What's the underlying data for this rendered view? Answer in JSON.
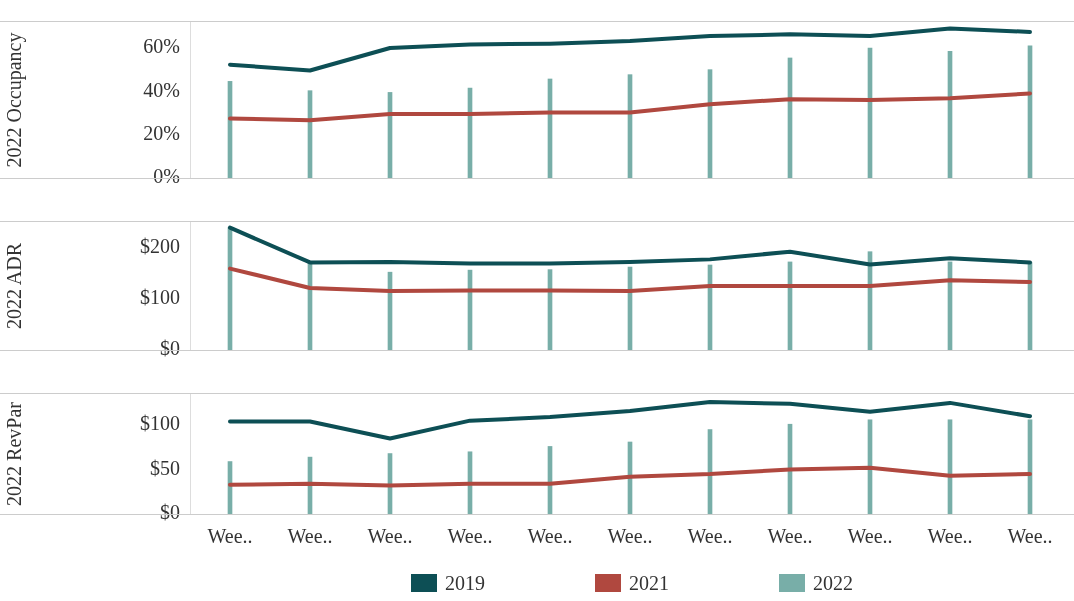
{
  "chart_data": [
    {
      "type": "line",
      "ylabel": "2022 Occupancy",
      "categories": [
        null,
        null,
        null,
        null,
        null,
        null,
        null,
        null,
        null,
        null,
        null
      ],
      "series": [
        {
          "color": "#0d4f55",
          "values": [
            52.3,
            49.6,
            60,
            61.6,
            62,
            63.2,
            65.5,
            66.3,
            65.5,
            69,
            67.4
          ]
        },
        {
          "color": "#b0483f",
          "values": [
            27.5,
            26.7,
            29.5,
            29.5,
            30.2,
            30.2,
            34,
            36.4,
            36,
            36.8,
            39
          ]
        },
        {
          "type": "bar",
          "color": "#78aea8",
          "values": [
            44.6,
            40.3,
            39.5,
            41.5,
            45.7,
            47.7,
            50,
            55.4,
            60,
            58.5,
            61
          ]
        }
      ],
      "ylim": [
        0,
        72
      ],
      "yticks": [
        {
          "value": 0,
          "label": "0%"
        },
        {
          "value": 20,
          "label": "20%"
        },
        {
          "value": 40,
          "label": "40%"
        },
        {
          "value": 60,
          "label": "60%"
        }
      ],
      "tick_labels": "y",
      "legend": false,
      "marker": "none"
    },
    {
      "type": "line",
      "ylabel": "2022 ADR",
      "categories": [
        null,
        null,
        null,
        null,
        null,
        null,
        null,
        null,
        null,
        null,
        null
      ],
      "series": [
        {
          "color": "#0d4f55",
          "values": [
            239,
            171,
            172,
            169,
            169,
            172,
            177,
            192,
            167,
            179,
            171
          ]
        },
        {
          "color": "#b0483f",
          "values": [
            159,
            121,
            115,
            116,
            116,
            115,
            125,
            125,
            125,
            136,
            133
          ]
        },
        {
          "type": "bar",
          "color": "#78aea8",
          "values": [
            239,
            171,
            152,
            156,
            157,
            162,
            166,
            172,
            192,
            172,
            171
          ]
        }
      ],
      "ylim": [
        0,
        250
      ],
      "yticks": [
        {
          "value": 0,
          "label": "$0"
        },
        {
          "value": 100,
          "label": "$100"
        },
        {
          "value": 200,
          "label": "$200"
        }
      ],
      "tick_labels": "y",
      "legend": false,
      "marker": "none"
    },
    {
      "type": "line",
      "ylabel": "2022 RevPar",
      "categories": [
        "Wee..",
        "Wee..",
        "Wee..",
        "Wee..",
        "Wee..",
        "Wee..",
        "Wee..",
        "Wee..",
        "Wee..",
        "Wee..",
        "Wee.."
      ],
      "series": [
        {
          "name": "2019",
          "color": "#0d4f55",
          "values": [
            104,
            104,
            85,
            105,
            109,
            116,
            126,
            124,
            115,
            125,
            110
          ]
        },
        {
          "name": "2021",
          "color": "#b0483f",
          "values": [
            33,
            34,
            32,
            34,
            34,
            42,
            45,
            50,
            52,
            43,
            45
          ]
        },
        {
          "name": "2022",
          "type": "bar",
          "color": "#78aea8",
          "values": [
            59,
            64,
            68,
            70,
            76,
            81,
            95,
            101,
            106,
            106,
            106
          ]
        }
      ],
      "ylim": [
        0,
        135
      ],
      "yticks": [
        {
          "value": 0,
          "label": "$0"
        },
        {
          "value": 50,
          "label": "$50"
        },
        {
          "value": 100,
          "label": "$100"
        }
      ],
      "legend": "bottom",
      "marker": "none"
    }
  ]
}
